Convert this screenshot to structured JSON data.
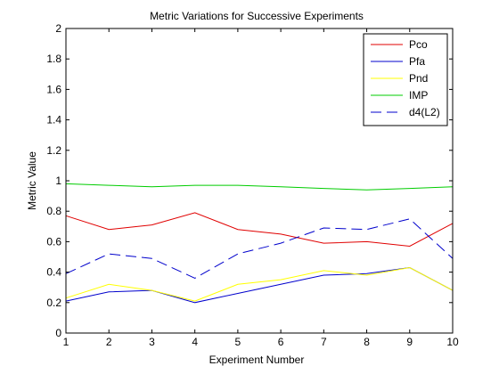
{
  "chart_data": {
    "type": "line",
    "title": "Metric Variations for Successive Experiments",
    "xlabel": "Experiment Number",
    "ylabel": "Metric Value",
    "xlim": [
      1,
      10
    ],
    "ylim": [
      0,
      2
    ],
    "xticks": [
      "1",
      "2",
      "3",
      "4",
      "5",
      "6",
      "7",
      "8",
      "9",
      "10"
    ],
    "yticks": [
      "0",
      "0.2",
      "0.4",
      "0.6",
      "0.8",
      "1",
      "1.2",
      "1.4",
      "1.6",
      "1.8",
      "2"
    ],
    "grid": false,
    "legend_position": "top-right",
    "x": [
      1,
      2,
      3,
      4,
      5,
      6,
      7,
      8,
      9,
      10
    ],
    "series": [
      {
        "name": "Pco",
        "color": "#e00000",
        "dash": "solid",
        "values": [
          0.77,
          0.68,
          0.71,
          0.79,
          0.68,
          0.65,
          0.59,
          0.6,
          0.57,
          0.72
        ]
      },
      {
        "name": "Pfa",
        "color": "#0000cc",
        "dash": "solid",
        "values": [
          0.21,
          0.27,
          0.28,
          0.2,
          0.26,
          0.32,
          0.38,
          0.39,
          0.43,
          0.28
        ]
      },
      {
        "name": "Pnd",
        "color": "#ffff00",
        "dash": "solid",
        "values": [
          0.23,
          0.32,
          0.28,
          0.21,
          0.32,
          0.35,
          0.41,
          0.38,
          0.43,
          0.28
        ]
      },
      {
        "name": "IMP",
        "color": "#00cc00",
        "dash": "solid",
        "values": [
          0.98,
          0.97,
          0.96,
          0.97,
          0.97,
          0.96,
          0.95,
          0.94,
          0.95,
          0.96
        ]
      },
      {
        "name": "d4(L2)",
        "color": "#0000cc",
        "dash": "dashed",
        "values": [
          0.39,
          0.52,
          0.49,
          0.36,
          0.52,
          0.59,
          0.69,
          0.68,
          0.75,
          0.49
        ]
      }
    ]
  }
}
